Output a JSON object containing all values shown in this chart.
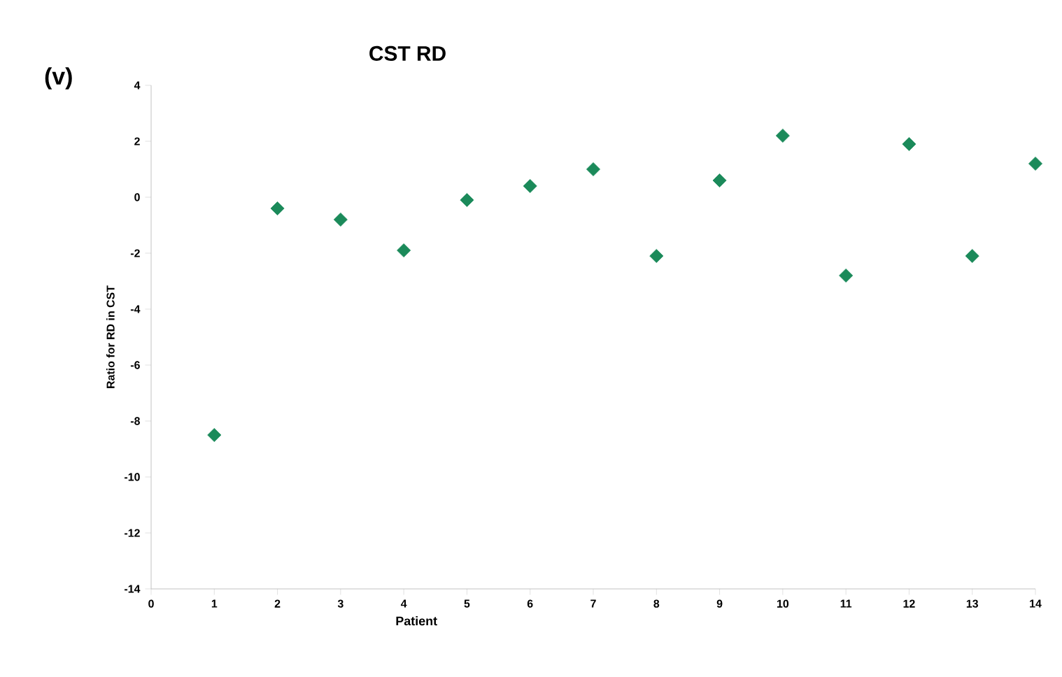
{
  "chart_data": {
    "type": "scatter",
    "title": "CST RD",
    "xlabel": "Patient",
    "ylabel": "Ratio for RD in CST",
    "annotations": [
      "(v)"
    ],
    "x": [
      1,
      2,
      3,
      4,
      5,
      6,
      7,
      8,
      9,
      10,
      11,
      12,
      13,
      14
    ],
    "values": [
      -8.5,
      -0.4,
      -0.8,
      -1.9,
      -0.1,
      0.4,
      1.0,
      -2.1,
      0.6,
      2.2,
      -2.8,
      1.9,
      -2.1,
      1.2
    ],
    "color": "#1b8a5a",
    "marker": "diamond",
    "grid": false,
    "xlim": [
      0,
      14
    ],
    "xticks": [
      0,
      1,
      2,
      3,
      4,
      5,
      6,
      7,
      8,
      9,
      10,
      11,
      12,
      13,
      14
    ],
    "ylim": [
      -14,
      4
    ],
    "yticks": [
      -14,
      -12,
      -10,
      -8,
      -6,
      -4,
      -2,
      0,
      2,
      4
    ]
  }
}
